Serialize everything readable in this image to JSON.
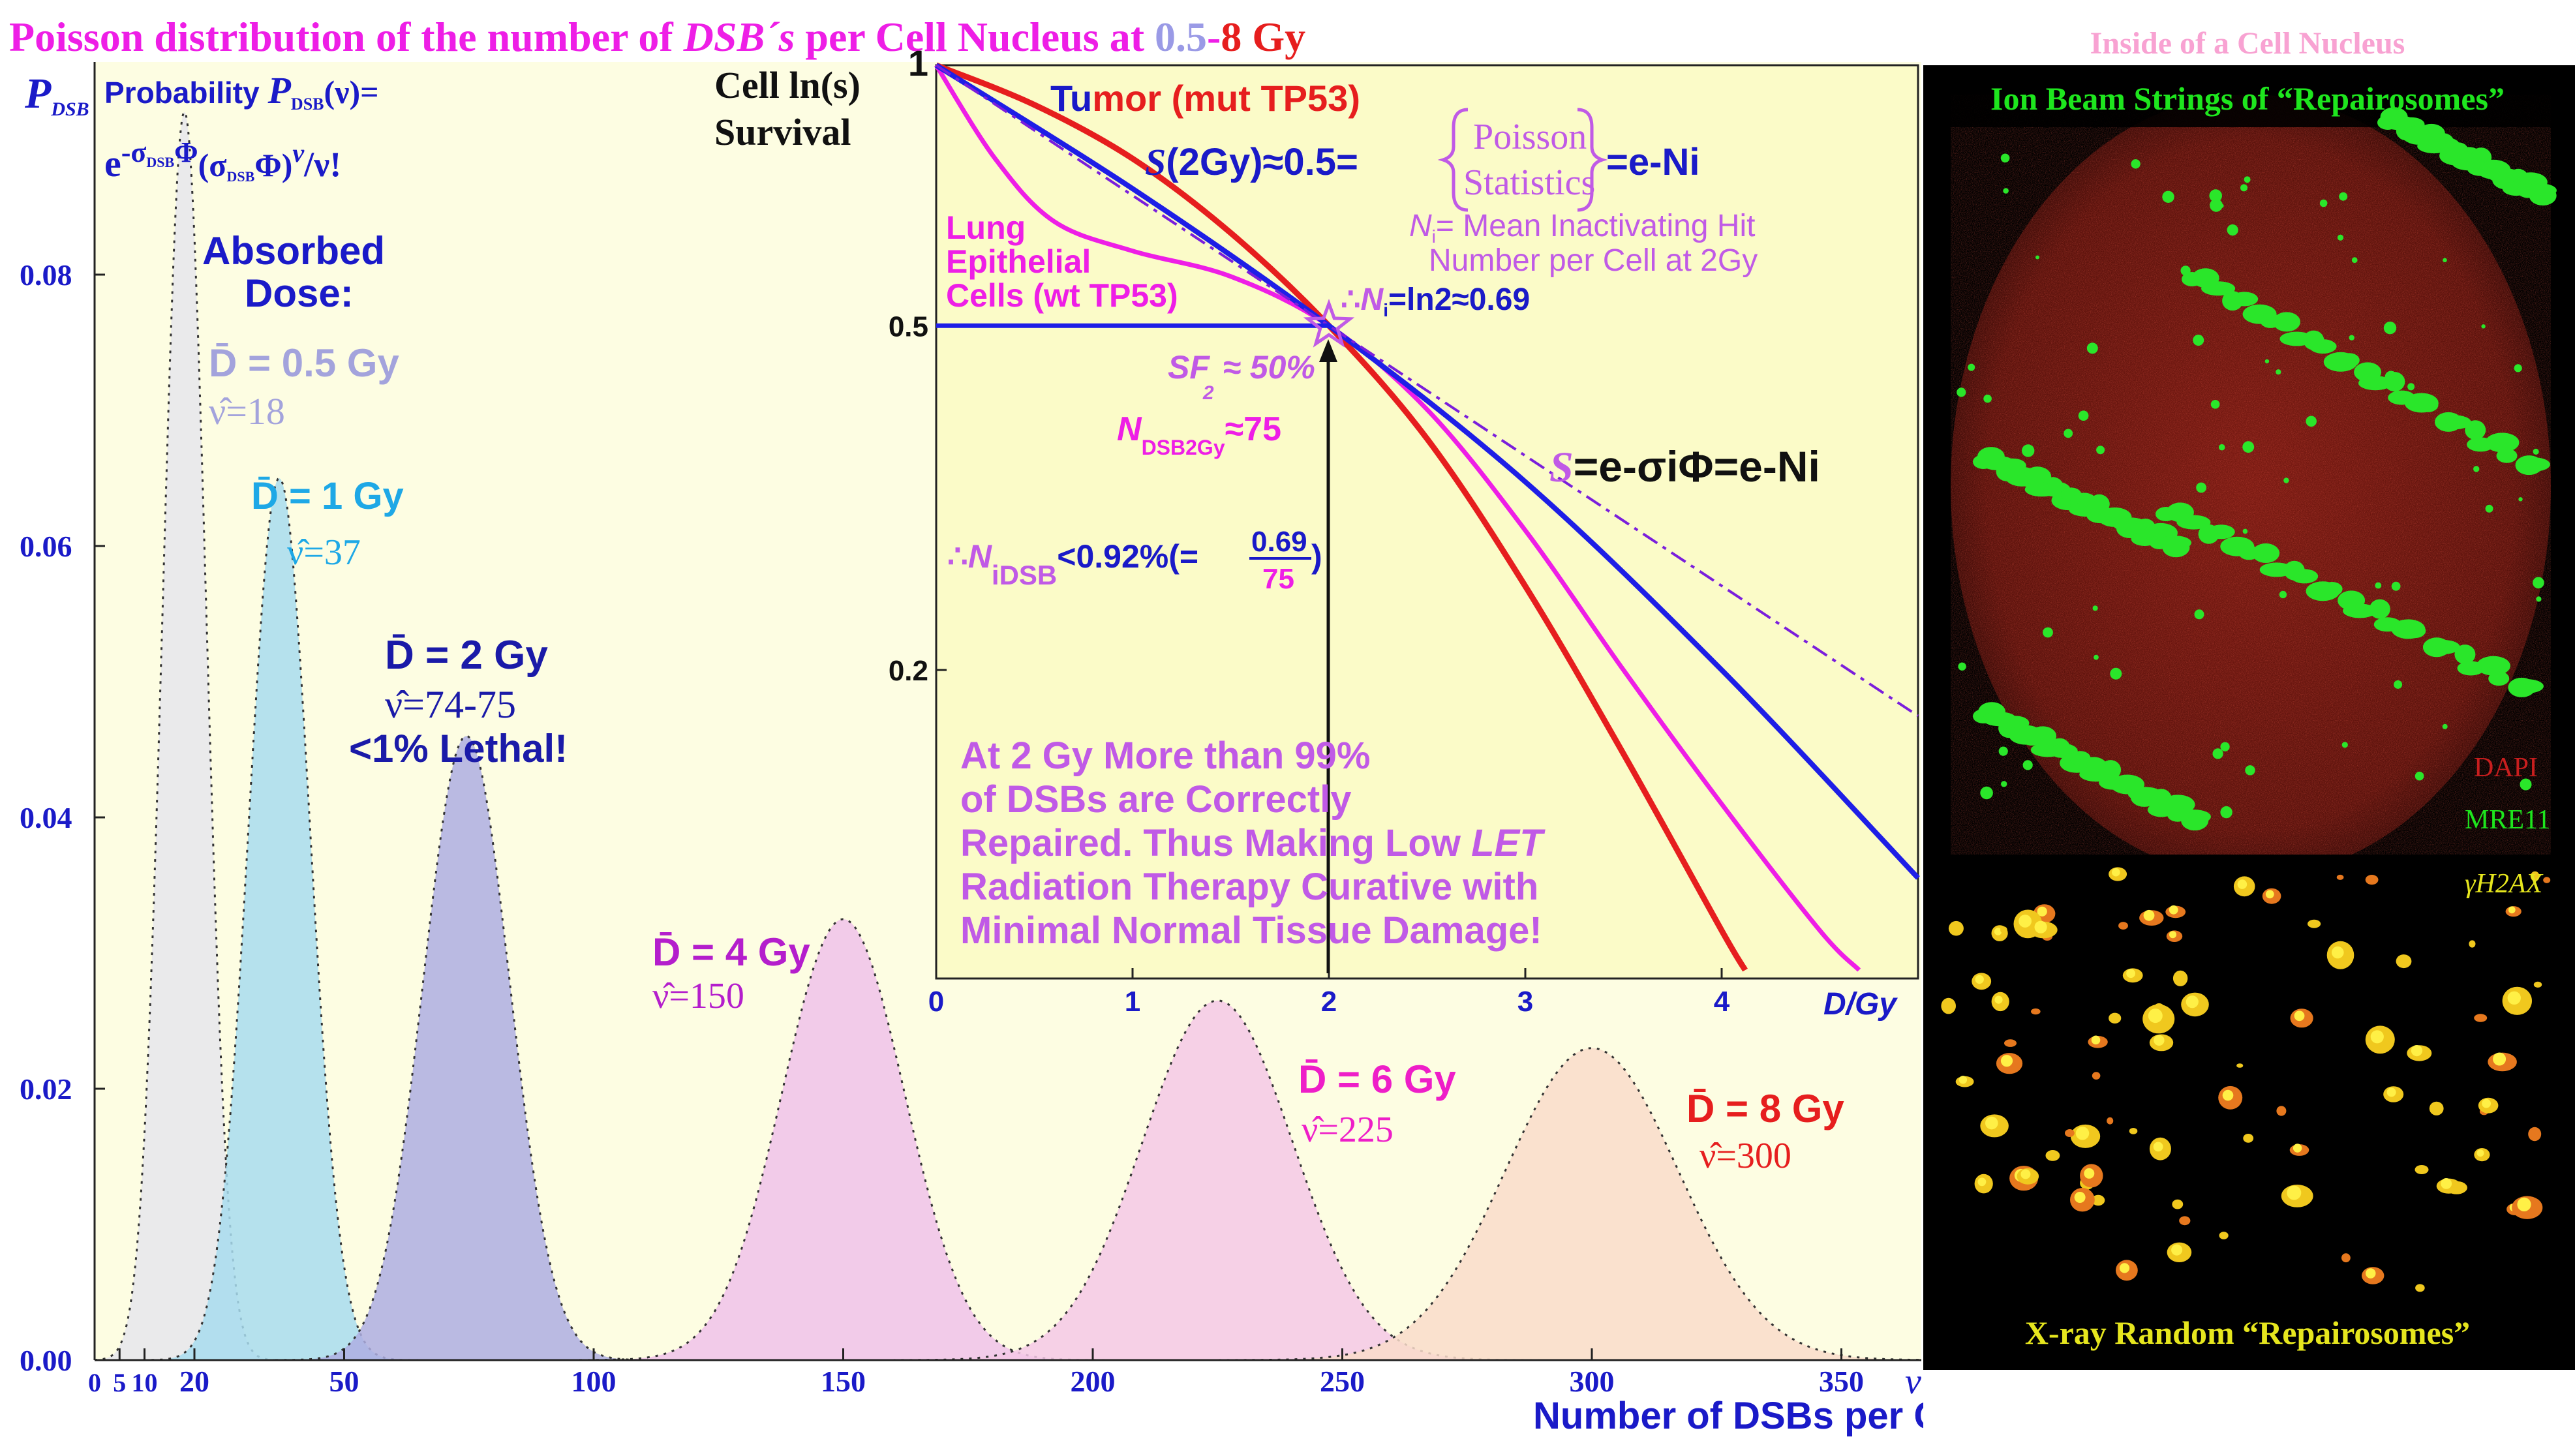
{
  "header": {
    "title_a": "Poisson distribution of the number of ",
    "title_dsb": "DSB´s",
    "title_b": " per Cell Nucleus at ",
    "title_low": "0.5",
    "title_dash": "-",
    "title_high": "8 Gy"
  },
  "formula": {
    "p_axis": "P",
    "p_sub": "DSB",
    "prob_label": "Probability ",
    "p_of_nu": "(ν)=",
    "rhs": "e-σDSBΦ(σDSBΦ)ν/ν!",
    "rhs_e": "e",
    "rhs_exp": "-σ",
    "rhs_sub": "DSB",
    "rhs_phi": "Φ",
    "rhs_paren": "(σ",
    "rhs_paren_sub": "DSB",
    "rhs_phi2": "Φ)",
    "rhs_nu": "ν",
    "rhs_end": "/ν!"
  },
  "absorbed_dose": {
    "line1": "Absorbed",
    "line2": "Dose:"
  },
  "lethal_note": "<1% Lethal!",
  "poisson_chart": {
    "chart_data": {
      "type": "area",
      "title": "Poisson distribution of the number of DSB´s per Cell Nucleus at 0.5-8 Gy",
      "xlabel": "Number of DSBs per Cell Nucleus",
      "x_symbol": "ν",
      "ylabel": "PDSB",
      "xlim": [
        0,
        360
      ],
      "ylim": [
        0,
        0.1
      ],
      "x_ticks": [
        0,
        5,
        10,
        20,
        50,
        100,
        150,
        200,
        250,
        300,
        350
      ],
      "x_tick_labels": [
        "0",
        "5",
        "10",
        "20",
        "50",
        "100",
        "150",
        "200",
        "250",
        "300",
        "350"
      ],
      "y_ticks": [
        0,
        0.02,
        0.04,
        0.06,
        0.08
      ],
      "y_tick_labels": [
        "0.00",
        "0.02",
        "0.04",
        "0.06",
        "0.08"
      ],
      "series": [
        {
          "dose": "0.5 Gy",
          "mean": 18,
          "peak": 0.092,
          "fill": "#e6e6ec",
          "label_color": "#a3a3dc",
          "dose_label": "D̄ = 0.5 Gy",
          "nu_label": "ν̂=18"
        },
        {
          "dose": "1 Gy",
          "mean": 37,
          "peak": 0.065,
          "fill": "#a8dcee",
          "label_color": "#1ea8e6",
          "dose_label": "D̄ = 1 Gy",
          "nu_label": "ν̂=37"
        },
        {
          "dose": "2 Gy",
          "mean": 74.5,
          "peak": 0.046,
          "fill": "#aeaee2",
          "label_color": "#1a1aa8",
          "dose_label": "D̄ = 2 Gy",
          "nu_label": "ν̂=74-75"
        },
        {
          "dose": "4 Gy",
          "mean": 150,
          "peak": 0.0325,
          "fill": "#f0c2ea",
          "label_color": "#b41ecc",
          "dose_label": "D̄ = 4 Gy",
          "nu_label": "ν̂=150"
        },
        {
          "dose": "6 Gy",
          "mean": 225,
          "peak": 0.0265,
          "fill": "#f4c8e6",
          "label_color": "#ee1ec8",
          "dose_label": "D̄ = 6 Gy",
          "nu_label": "ν̂=225"
        },
        {
          "dose": "8 Gy",
          "mean": 300,
          "peak": 0.023,
          "fill": "#f9dcca",
          "label_color": "#e61e1e",
          "dose_label": "D̄ = 8 Gy",
          "nu_label": "ν̂=300"
        }
      ]
    }
  },
  "survival_chart": {
    "chart_data": {
      "type": "line",
      "ylabel_line1": "Cell  ln(s)",
      "ylabel_line2": "Survival",
      "xlabel": "D/Gy",
      "xlim": [
        0,
        5
      ],
      "y_log": true,
      "y_ticks": [
        0.2,
        0.5,
        1
      ],
      "y_tick_labels": [
        "0.2",
        "0.5",
        "1"
      ],
      "x_ticks": [
        0,
        1,
        2,
        3,
        4
      ],
      "x_tick_labels": [
        "0",
        "1",
        "2",
        "3",
        "4"
      ],
      "series": [
        {
          "name": "Tumor (mut TP53)",
          "color": "#e61e1e",
          "x": [
            0,
            0.5,
            1,
            1.5,
            2,
            2.5,
            3,
            3.5,
            4,
            4.12
          ],
          "y": [
            1,
            0.9,
            0.78,
            0.64,
            0.5,
            0.37,
            0.25,
            0.16,
            0.1,
            0.09
          ]
        },
        {
          "name": "Lung Epithelial Cells (wt TP53)",
          "color": "#ee1ee6",
          "x": [
            0,
            0.3,
            0.6,
            1,
            1.5,
            2,
            2.5,
            3,
            3.5,
            4,
            4.5,
            4.7
          ],
          "y": [
            1,
            0.78,
            0.66,
            0.61,
            0.57,
            0.5,
            0.4,
            0.29,
            0.2,
            0.14,
            0.1,
            0.09
          ]
        },
        {
          "name": "blue",
          "color": "#1e1ee6",
          "x": [
            0,
            1,
            2,
            3,
            4,
            5
          ],
          "y": [
            1,
            0.72,
            0.5,
            0.33,
            0.2,
            0.115
          ]
        },
        {
          "name": "S=e-σiΦ=e-Ni",
          "color": "#7a1edc",
          "x": [
            0,
            2,
            5
          ],
          "y": [
            1,
            0.5,
            0.177
          ]
        },
        {
          "name": "S(2Gy) level",
          "color": "#1e1ee6",
          "x": [
            0,
            2
          ],
          "y": [
            0.5,
            0.5
          ]
        }
      ]
    }
  },
  "survival_labels": {
    "tumor_tu": "Tu",
    "tumor_mor": "mor (mut TP53)",
    "lung1": "Lung",
    "lung2": "Epithelial",
    "lung3": "Cells (wt TP53)",
    "s2gy_s": "S",
    "s2gy_rest": "(2Gy)≈0.5=",
    "poisson1": "Poisson",
    "poisson2": "Statistics",
    "e_neg": "=e-Ni",
    "ni_def1": "= Mean Inactivating Hit",
    "ni_def2": "Number per Cell at 2Gy",
    "ni_sym": "N",
    "ni_sub": "i",
    "therefore": "∴",
    "ni_ln": "=ln2≈0.69",
    "sf_label": "SF",
    "sf_sub": "2",
    "sf_val": " ≈ 50%",
    "ndsb_sym": "N",
    "ndsb_sub": "DSB2Gy",
    "ndsb_val": "≈75",
    "nidsb_sym": "N",
    "nidsb_sub": "iDSB",
    "nidsb_val": "<0.92%(=",
    "frac_num": "0.69",
    "frac_den": "75",
    "close_paren": ")",
    "equation_s": "S",
    "equation_rest": "=e-σiΦ=e-Ni",
    "conclusion1": "At 2 Gy More than 99%",
    "conclusion2": "of DSBs are Correctly",
    "conclusion3": "Repaired. Thus Making Low ",
    "conclusion3_let": "LET",
    "conclusion4": "Radiation Therapy Curative with",
    "conclusion5": "Minimal Normal Tissue Damage!"
  },
  "micrographs": {
    "title_top": "Inside of a Cell Nucleus",
    "ion_beam": "Ion Beam Strings of “Repairosomes”",
    "dapi": "DAPI",
    "mre11": "MRE11",
    "gh2ax": "γH2AX",
    "xray": "X-ray Random “Repairosomes”",
    "colors": {
      "red": "#b41e1e",
      "green": "#1ee61e",
      "yellow": "#e6e61e"
    }
  }
}
